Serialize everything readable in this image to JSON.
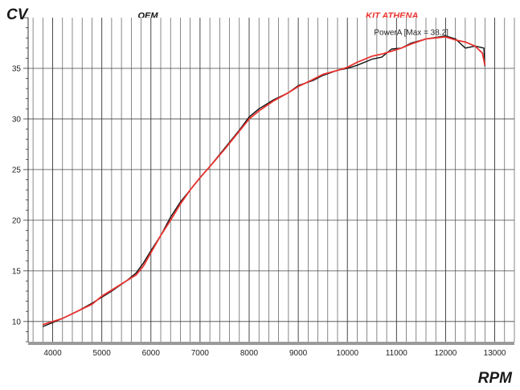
{
  "chart_data": {
    "type": "line",
    "ylabel": "CV",
    "xlabel": "RPM",
    "xlim": [
      3500,
      13400
    ],
    "ylim": [
      8,
      40
    ],
    "x_ticks": [
      4000,
      5000,
      6000,
      7000,
      8000,
      9000,
      10000,
      11000,
      12000,
      13000
    ],
    "y_ticks": [
      10,
      15,
      20,
      25,
      30,
      35
    ],
    "grid": true,
    "legend_position": "top",
    "annotation": "PowerA [Max = 38.2]",
    "series": [
      {
        "name": "OEM",
        "color": "#111111",
        "points": [
          [
            3800,
            9.5
          ],
          [
            4000,
            9.9
          ],
          [
            4200,
            10.3
          ],
          [
            4500,
            11.0
          ],
          [
            4800,
            11.8
          ],
          [
            5000,
            12.4
          ],
          [
            5200,
            13.0
          ],
          [
            5500,
            14.0
          ],
          [
            5700,
            14.8
          ],
          [
            5850,
            15.8
          ],
          [
            6000,
            17.0
          ],
          [
            6200,
            18.5
          ],
          [
            6400,
            20.3
          ],
          [
            6600,
            21.8
          ],
          [
            6800,
            23.0
          ],
          [
            7000,
            24.2
          ],
          [
            7200,
            25.3
          ],
          [
            7500,
            27.1
          ],
          [
            7800,
            28.9
          ],
          [
            8000,
            30.2
          ],
          [
            8200,
            31.0
          ],
          [
            8500,
            31.9
          ],
          [
            8800,
            32.6
          ],
          [
            9000,
            33.3
          ],
          [
            9300,
            33.8
          ],
          [
            9500,
            34.3
          ],
          [
            9800,
            34.8
          ],
          [
            10000,
            35.0
          ],
          [
            10200,
            35.3
          ],
          [
            10500,
            35.9
          ],
          [
            10700,
            36.1
          ],
          [
            10900,
            36.9
          ],
          [
            11100,
            37.0
          ],
          [
            11300,
            37.5
          ],
          [
            11600,
            37.9
          ],
          [
            12000,
            38.2
          ],
          [
            12200,
            37.9
          ],
          [
            12400,
            37.0
          ],
          [
            12600,
            37.2
          ],
          [
            12780,
            37.0
          ],
          [
            12800,
            35.2
          ]
        ]
      },
      {
        "name": "KIT ATHENA",
        "color": "#e8322e",
        "points": [
          [
            3800,
            9.7
          ],
          [
            4000,
            10.0
          ],
          [
            4200,
            10.3
          ],
          [
            4500,
            11.0
          ],
          [
            4800,
            11.7
          ],
          [
            5000,
            12.5
          ],
          [
            5200,
            13.1
          ],
          [
            5500,
            14.0
          ],
          [
            5700,
            14.6
          ],
          [
            5850,
            15.5
          ],
          [
            6000,
            16.8
          ],
          [
            6200,
            18.5
          ],
          [
            6400,
            20.0
          ],
          [
            6600,
            21.6
          ],
          [
            6800,
            23.0
          ],
          [
            7000,
            24.2
          ],
          [
            7200,
            25.3
          ],
          [
            7500,
            27.0
          ],
          [
            7800,
            28.8
          ],
          [
            8000,
            30.0
          ],
          [
            8200,
            30.8
          ],
          [
            8500,
            31.8
          ],
          [
            8800,
            32.6
          ],
          [
            9000,
            33.2
          ],
          [
            9300,
            33.9
          ],
          [
            9500,
            34.4
          ],
          [
            9800,
            34.8
          ],
          [
            10000,
            35.1
          ],
          [
            10200,
            35.6
          ],
          [
            10500,
            36.2
          ],
          [
            10700,
            36.4
          ],
          [
            10900,
            36.7
          ],
          [
            11100,
            37.0
          ],
          [
            11300,
            37.4
          ],
          [
            11600,
            37.9
          ],
          [
            12000,
            38.1
          ],
          [
            12200,
            37.8
          ],
          [
            12400,
            37.6
          ],
          [
            12600,
            37.2
          ],
          [
            12750,
            36.5
          ],
          [
            12800,
            35.3
          ]
        ]
      }
    ]
  }
}
